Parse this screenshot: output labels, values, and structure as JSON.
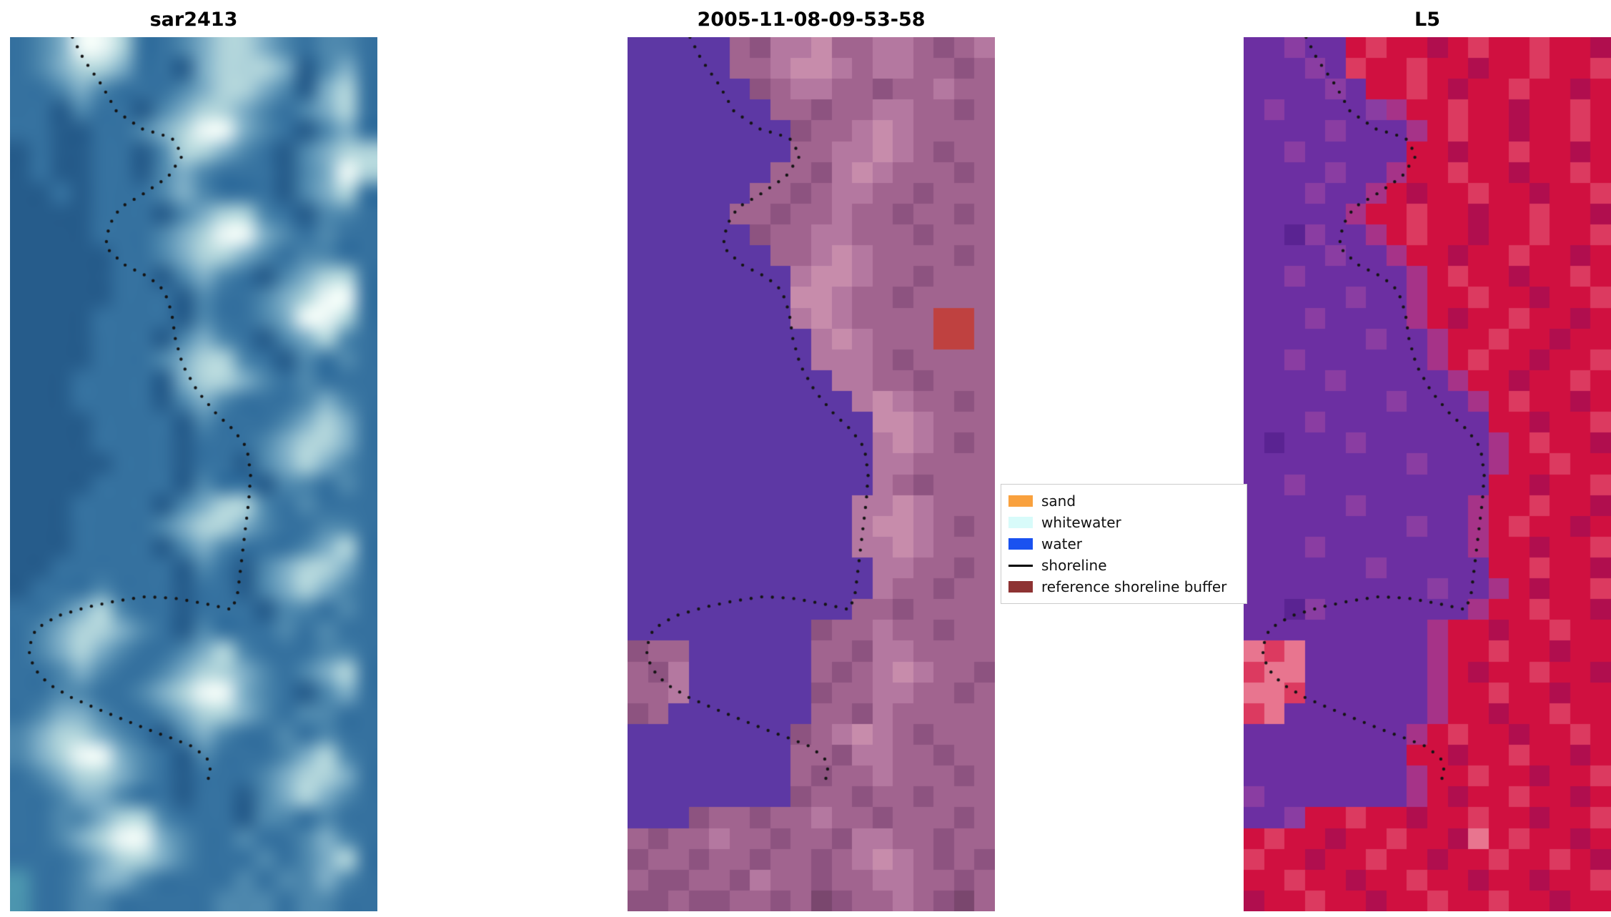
{
  "figure": {
    "background": "#ffffff"
  },
  "chart_data": {
    "type": "heatmap",
    "subtype": "satellite-image-panels",
    "panels": [
      {
        "title": "sar2413",
        "smooth": true,
        "palette": {
          "a": "#35719f",
          "b": "#265c8b",
          "c": "#4d87ad",
          "d": "#7cadc6",
          "e": "#afd3da",
          "f": "#edf8f6",
          "g": "#4b94ae"
        },
        "grid": [
          "acdffeaacdeedcacca",
          "acdeedaabdeeedbcda",
          "aacdcaaacdeedcbdea",
          "aabcaabcdeedcacdea",
          "aabbaacdeffdcabcda",
          "babbaabceedcabcdee",
          "babbaabcdcaaabcdfe",
          "bbabaaacdcaaabcdea",
          "bbbbaaabcdeecabcca",
          "bbbbaaacdeffdcacaa",
          "bbbbbaacdeedcaccaa",
          "bbbbbaabcdcabcdeea",
          "bbbbbaaabcaacdeffa",
          "bbbbaaaabcaacdffea",
          "bbbbaaabcdcabcdeca",
          "bbbbaaacdeecabcaca",
          "bbbaaaabdeedcacaaa",
          "bbbaaaabcdcaaacdca",
          "bbbbaaaabcaaacdeda",
          "bbbbaaaabaaacdeeda",
          "bbbbbaaabaabcdedca",
          "bbbbaaaabcaabccaca",
          "bbbaaaabcdeecacaaa",
          "bbbaaaacdeedcaacca",
          "bbbaaaabcdcaaacdea",
          "bbaaaaaabcabcdeeda",
          "baaacaaabaabcdedca",
          "aacdecaabaaabccaca",
          "acdeedcabcaaacacaa",
          "acdedcaacdecaaacca",
          "aacdcaacdeedcacdea",
          "aaccaacdeffdcabcda",
          "acddcaacdeedcaccaa",
          "cdeedcabcdcaacacaa",
          "cdeffdcabcaaacdeca",
          "acdeedcabaaacdeeda",
          "aacddcaabaabcdedca",
          "aaccdeecaaabccacaa",
          "aacdeffdcaacaacdca",
          "aaacdeedcaaacacdea",
          "gaacddcaaaacaccdca",
          "gaaccaaaaacccaccaa"
        ]
      },
      {
        "title": "2005-11-08-09-53-58",
        "smooth": false,
        "palette": {
          "w": "#5d38a4",
          "m": "#a1648f",
          "n": "#8d5380",
          "p": "#b478a0",
          "q": "#c78cab",
          "d": "#7a476e",
          "r": "#bf4140"
        },
        "grid": [
          "wwwwwmnppqmmppmnmp",
          "wwwwwmmpqqpmppmmnm",
          "wwwwwwnmppmmnmmpmm",
          "wwwwwwwmmnmmppmmnm",
          "wwwwwwwwnmmpqpmmmm",
          "wwwwwwwwmmppqpmnmm",
          "wwwwwwwmmnpqpmmmnm",
          "wwwwwwmmnmppmmnmmm",
          "wwwwwmmnmmpmmnmmnm",
          "wwwwwwnmmppmmmnmmm",
          "wwwwwwwmmpqpmmmmnm",
          "wwwwwwwwpqqpmmnmmm",
          "wwwwwwwwqqpmmnmmmm",
          "wwwwwwwwpqpmmmmrrm",
          "wwwwwwwwwpqpmmmrrm",
          "wwwwwwwwwpppmnmmmm",
          "wwwwwwwwwwppmmnmmm",
          "wwwwwwwwwwwpqpmmnm",
          "wwwwwwwwwwwwqqpmmm",
          "wwwwwwwwwwwwpqpmnm",
          "wwwwwwwwwwwwppmmmm",
          "wwwwwwwwwwwwpmnmmm",
          "wwwwwwwwwwwppqpmmm",
          "wwwwwwwwwwwpqqpmnm",
          "wwwwwwwwwwwppqpmmm",
          "wwwwwwwwwwwwppmmnm",
          "wwwwwwwwwwwwpmmnmm",
          "wwwwwwwwwwwmmnmmmm",
          "wwwwwwwwwnmmpmmnmm",
          "nmmwwwwwwmmnppmmmm",
          "mnpwwwwwwmnmpqpmmn",
          "mmpwwwwwwnmmppmmnm",
          "nmwwwwwwwmmnpmmmmm",
          "wwwwwwwwnmpqpmnmmm",
          "wwwwwwwwmmnppmmnmm",
          "wwwwwwwwmnmmpmmmnm",
          "wwwwwwwwnmmnmmnmmm",
          "wwwnmmnmmpmmnmmmnm",
          "mnmmpmmnmmnppmmnmm",
          "nmmnmmnmmnmpqpmnmn",
          "mnnmmnpmmnmmppmmnm",
          "nnmnnmmnmdnmmpmndm"
        ]
      },
      {
        "title": "L5",
        "smooth": false,
        "palette": {
          "P": "#6c2fa2",
          "V": "#8a3da2",
          "D": "#5a2392",
          "R": "#d01040",
          "S": "#dc3a60",
          "K": "#b00e4e",
          "M": "#a63388",
          "T": "#e8758f"
        },
        "grid": [
          "PPVPPRSRRKRSRRSRRK",
          "PPPVPSRRSRRKRRSRRS",
          "PPPPVPRRSRKRRSRRKR",
          "PVPPPPVMRRSRRKRRSR",
          "PPPPVPPPMRSRRKRRSR",
          "PPVPPPPPRRKRRSRRKR",
          "PPPPVPPMRRSRRKRRSR",
          "PPPVPPMRKRRSRRKRRS",
          "PPPPPMRRSRRKRRSRRK",
          "PPDVPPMRSRRKRRSRRS",
          "PPPPVPPMRRKRRSRRKR",
          "PPVPPPPPMRSRRKRRSR",
          "PPPPPVPPMRRSRRKRRS",
          "PPPVPPPPMRKRRSRRKR",
          "PPPPPPVPPMRRSRRKRR",
          "PPVPPPPPPMRSRRKRRS",
          "PPPPVPPPPPMRRKRRSR",
          "PPPPPPPVPPPMRSRRKR",
          "PPPVPPPPPPPPRRKRRS",
          "PDPPPVPPPPPPMRSRRK",
          "PPPPPPPPVPPPMRRSRR",
          "PPVPPPPPPPPPRRKRRS",
          "PPPPPVPPPPPMRRSRRK",
          "PPPPPPPPVPPMRSRRKR",
          "PPPVPPPPPPPMRRKRRS",
          "PPPPPPVPPPPPRRSRRK",
          "PPPPPPPPPVPPMRKRRS",
          "PPDVPPPPPPPMRRSRRK",
          "PPPPPPPPPMRRKRRSRR",
          "TSTPPPPPPMRRSRRKRR",
          "STTPPPPPPMRKRRSRRK",
          "TTSPPPPPPMRRSRRKRR",
          "STPPPPPPPMRRKRRSRR",
          "PPPPPPPPMRSRRKRRSR",
          "PPPPPPPPRRKRRSRRKR",
          "PPPPPPPPMRRSRRKRRS",
          "VPPPPPPPMRKRRSRRKR",
          "PPVRRSRRKRRSRRKRRS",
          "RSRRKRRSRRKTRSRRKR",
          "SRRKRRSRRKRRSRRSRK",
          "RRSRRKRRSRRKRRKRRS",
          "KRRSRRKRRSRRSRRKRR"
        ]
      }
    ],
    "shoreline": {
      "color": "#141414",
      "dot_radius": 2.2,
      "dot_spacing": 15,
      "points": [
        [
          0.17,
          0.0
        ],
        [
          0.2,
          0.025
        ],
        [
          0.25,
          0.055
        ],
        [
          0.29,
          0.085
        ],
        [
          0.36,
          0.105
        ],
        [
          0.44,
          0.115
        ],
        [
          0.47,
          0.135
        ],
        [
          0.43,
          0.16
        ],
        [
          0.36,
          0.18
        ],
        [
          0.3,
          0.195
        ],
        [
          0.27,
          0.215
        ],
        [
          0.26,
          0.24
        ],
        [
          0.31,
          0.26
        ],
        [
          0.38,
          0.275
        ],
        [
          0.42,
          0.29
        ],
        [
          0.44,
          0.315
        ],
        [
          0.45,
          0.345
        ],
        [
          0.47,
          0.375
        ],
        [
          0.51,
          0.405
        ],
        [
          0.56,
          0.43
        ],
        [
          0.61,
          0.45
        ],
        [
          0.645,
          0.47
        ],
        [
          0.655,
          0.5
        ],
        [
          0.65,
          0.53
        ],
        [
          0.64,
          0.565
        ],
        [
          0.63,
          0.6
        ],
        [
          0.62,
          0.635
        ],
        [
          0.605,
          0.655
        ],
        [
          0.53,
          0.648
        ],
        [
          0.45,
          0.642
        ],
        [
          0.37,
          0.64
        ],
        [
          0.29,
          0.645
        ],
        [
          0.21,
          0.652
        ],
        [
          0.13,
          0.662
        ],
        [
          0.07,
          0.677
        ],
        [
          0.05,
          0.7
        ],
        [
          0.065,
          0.722
        ],
        [
          0.105,
          0.74
        ],
        [
          0.165,
          0.755
        ],
        [
          0.235,
          0.768
        ],
        [
          0.305,
          0.78
        ],
        [
          0.375,
          0.792
        ],
        [
          0.44,
          0.802
        ],
        [
          0.5,
          0.812
        ],
        [
          0.54,
          0.827
        ],
        [
          0.548,
          0.845
        ],
        [
          0.52,
          0.855
        ]
      ]
    },
    "legend": {
      "entries": [
        {
          "label": "sand",
          "color": "#f9a13e",
          "type": "patch"
        },
        {
          "label": "whitewater",
          "color": "#d8fbfa",
          "type": "patch"
        },
        {
          "label": "water",
          "color": "#1a52f0",
          "type": "patch"
        },
        {
          "label": "shoreline",
          "color": "#000000",
          "type": "line"
        },
        {
          "label": "reference shoreline buffer",
          "color": "#8e3333",
          "type": "patch"
        }
      ]
    }
  }
}
